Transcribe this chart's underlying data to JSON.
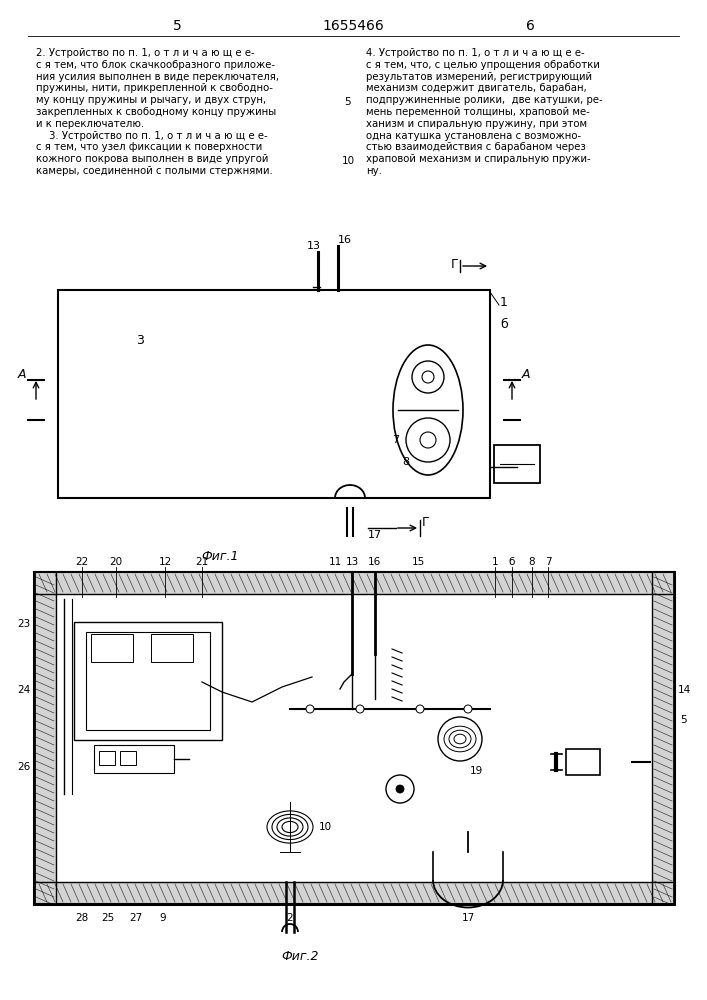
{
  "bg_color": "#ffffff",
  "page_num_left": "5",
  "page_num_center": "1655466",
  "page_num_right": "6",
  "fig1_caption": "Фиг.1",
  "fig2_caption": "Фиг.2",
  "col1_line1": "2. Устройство по п. 1, о т л и ч а ю щ е е-",
  "col1_line2": "с я тем, что блок скачкообразного приложе-",
  "col1_line3": "ния усилия выполнен в виде переключателя,",
  "col1_line4": "пружины, нити, прикрепленной к свободно-",
  "col1_line5": "му концу пружины и рычагу, и двух струн,",
  "col1_line6": "закрепленных к свободному концу пружины",
  "col1_line7": "и к переключателю.",
  "col1_line8": "    3. Устройство по п. 1, о т л и ч а ю щ е е-",
  "col1_line9": "с я тем, что узел фиксации к поверхности",
  "col1_line10": "кожного покрова выполнен в виде упругой",
  "col1_line11": "камеры, соединенной с полыми стержнями.",
  "col2_line1": "4. Устройство по п. 1, о т л и ч а ю щ е е-",
  "col2_line2": "с я тем, что, с целью упрощения обработки",
  "col2_line3": "результатов измерений, регистрирующий",
  "col2_line4": "механизм содержит двигатель, барабан,",
  "col2_line5": "подпружиненные ролики,  две катушки, ре-",
  "col2_line6": "мень переменной толщины, храповой ме-",
  "col2_line7": "ханизм и спиральную пружину, при этом",
  "col2_line8": "одна катушка установлена с возможно-",
  "col2_line9": "стью взаимодействия с барабаном через",
  "col2_line10": "храповой механизм и спиральную пружи-",
  "col2_line11": "ну."
}
